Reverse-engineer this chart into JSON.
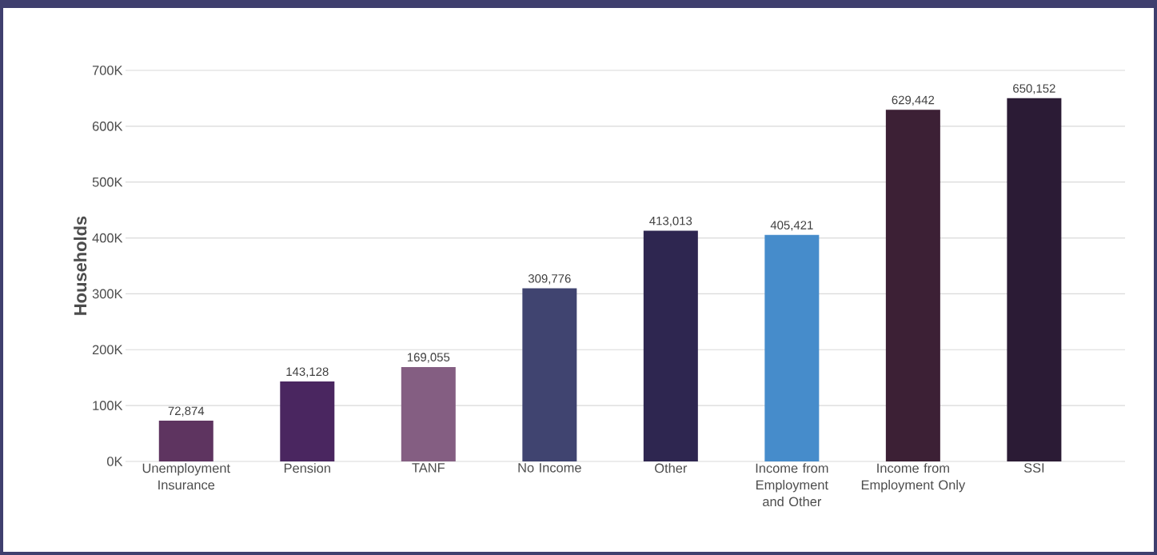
{
  "chart_data": {
    "type": "bar",
    "ylabel": "Households",
    "categories": [
      "Unemployment Insurance",
      "Pension",
      "TANF",
      "No Income",
      "Other",
      "Income from Employment and Other",
      "Income from Employment Only",
      "SSI"
    ],
    "values": [
      72874,
      143128,
      169055,
      309776,
      413013,
      405421,
      629442,
      650152
    ],
    "value_labels": [
      "72,874",
      "143,128",
      "169,055",
      "309,776",
      "413,013",
      "405,421",
      "629,442",
      "650,152"
    ],
    "colors": [
      "#5e3460",
      "#4a2660",
      "#845e82",
      "#404470",
      "#2e2650",
      "#468ccb",
      "#3c2035",
      "#2b1b35"
    ],
    "ylim": [
      0,
      700000
    ],
    "yticks": [
      {
        "value": 0,
        "label": "0K"
      },
      {
        "value": 100000,
        "label": "100K"
      },
      {
        "value": 200000,
        "label": "200K"
      },
      {
        "value": 300000,
        "label": "300K"
      },
      {
        "value": 400000,
        "label": "400K"
      },
      {
        "value": 500000,
        "label": "500K"
      },
      {
        "value": 600000,
        "label": "600K"
      },
      {
        "value": 700000,
        "label": "700K"
      }
    ],
    "grid": "y"
  }
}
